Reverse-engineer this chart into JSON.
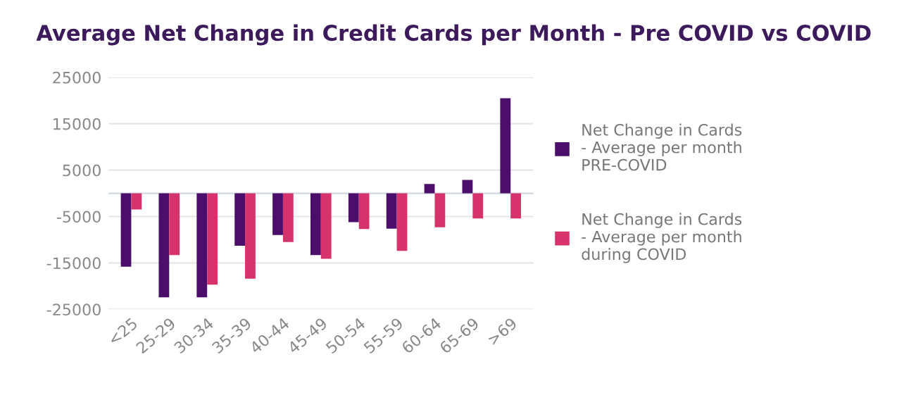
{
  "chart_data": {
    "type": "bar",
    "title": "Average Net Change in Credit Cards per Month - Pre COVID vs COVID",
    "categories": [
      "<25",
      "25-29",
      "30-34",
      "35-39",
      "40-44",
      "45-49",
      "50-54",
      "55-59",
      "60-64",
      "65-69",
      ">69"
    ],
    "series": [
      {
        "name": "Net Change in Cards - Average per month PRE-COVID",
        "color": "#4b0f6b",
        "values": [
          -15800,
          -22400,
          -22400,
          -11300,
          -9000,
          -13300,
          -6200,
          -7600,
          2000,
          2900,
          20500
        ]
      },
      {
        "name": "Net Change in Cards - Average per month during COVID",
        "color": "#d6336c",
        "values": [
          -3500,
          -13300,
          -19700,
          -18400,
          -10500,
          -14100,
          -7700,
          -12400,
          -7300,
          -5400,
          -5400
        ]
      }
    ],
    "ylim": [
      -25000,
      25000
    ],
    "yticks": [
      -25000,
      -15000,
      -5000,
      5000,
      15000,
      25000
    ],
    "grid": "y",
    "legend": "right"
  }
}
